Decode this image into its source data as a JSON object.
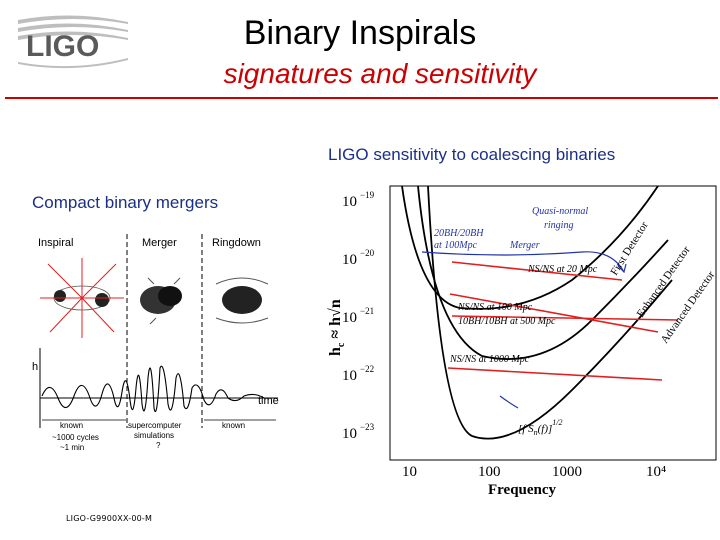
{
  "logo": {
    "text": "LIGO",
    "icon": "ligo-logo-icon"
  },
  "title": "Binary Inspirals",
  "subtitle": "signatures and sensitivity",
  "colors": {
    "accent": "#cc0000",
    "caption": "#1a2f8a",
    "curve_red": "#e02020"
  },
  "right_caption": "LIGO sensitivity to coalescing binaries",
  "left_caption": "Compact binary mergers",
  "footer": "LIGO-G9900XX-00-M",
  "waveform_figure": {
    "phases": [
      "Inspiral",
      "Merger",
      "Ringdown"
    ],
    "y_label": "h",
    "x_label": "time",
    "bottom_known_left": "known",
    "bottom_cycles": "~1000 cycles",
    "bottom_minutes": "~1 min",
    "bottom_center_1": "supercomputer",
    "bottom_center_2": "simulations",
    "bottom_center_3": "?",
    "bottom_known_right": "known"
  },
  "sensitivity_figure": {
    "y_label": "h",
    "y_label_sub": "c",
    "y_label_rest": "≈ h√n",
    "y_ticks": [
      "10",
      "10",
      "10",
      "10",
      "10"
    ],
    "y_tick_exponents": [
      "−19",
      "−20",
      "−21",
      "−22",
      "−23"
    ],
    "x_ticks": [
      "10",
      "100",
      "1000",
      "10⁴"
    ],
    "x_label": "Frequency",
    "annotations": {
      "quasi_normal": "Quasi-normal",
      "ringing": "ringing",
      "bh20_1": "20BH/20BH",
      "bh20_2": "at 100Mpc",
      "merger": "Merger",
      "ns20": "NS/NS at 20 Mpc",
      "ns100": "NS/NS at 100 Mpc",
      "bh10": "10BH/10BH at 500 Mpc",
      "ns1000": "NS/NS at 1000 Mpc",
      "fs": "[f S",
      "fs_sub": "n",
      "fs_rest": "(f)]",
      "fs_exp": "1/2"
    },
    "detectors": [
      "First Detector",
      "Enhanced Detector",
      "Advanced Detector"
    ]
  }
}
